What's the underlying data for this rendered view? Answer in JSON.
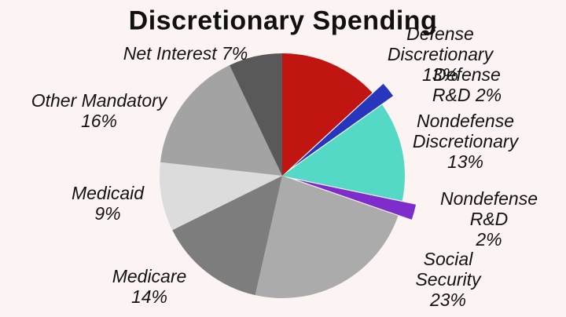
{
  "chart_data": {
    "type": "pie",
    "title": "Discretionary Spending",
    "background_color": "#fbf4f2",
    "label_color": "#131313",
    "legend": "none (direct slice labels)",
    "start_angle_deg": -90,
    "direction": "clockwise",
    "slices": [
      {
        "name": "defense-discretionary",
        "category": "Defense Discretionary",
        "value": 13,
        "percent_label": "13%",
        "color": "#c01510",
        "exploded": false,
        "label": "Defense Discretionary 13%"
      },
      {
        "name": "defense-rd",
        "category": "Defense R&D",
        "value": 2,
        "percent_label": "2%",
        "color": "#2737bd",
        "exploded": true,
        "label": "Defense R&D 2%"
      },
      {
        "name": "nondefense-discretionary",
        "category": "Nondefense Discretionary",
        "value": 13,
        "percent_label": "13%",
        "color": "#53d9c6",
        "exploded": false,
        "label": "Nondefense\nDiscretionary\n13%"
      },
      {
        "name": "nondefense-rd",
        "category": "Nondefense R&D",
        "value": 2,
        "percent_label": "2%",
        "color": "#7e2ccb",
        "exploded": true,
        "label": "Nondefense R&D\n2%"
      },
      {
        "name": "social-security",
        "category": "Social Security",
        "value": 23,
        "percent_label": "23%",
        "color": "#ababab",
        "exploded": false,
        "label": "Social Security\n23%"
      },
      {
        "name": "medicare",
        "category": "Medicare",
        "value": 14,
        "percent_label": "14%",
        "color": "#7d7d7d",
        "exploded": false,
        "label": "Medicare\n14%"
      },
      {
        "name": "medicaid",
        "category": "Medicaid",
        "value": 9,
        "percent_label": "9%",
        "color": "#dcdcdc",
        "exploded": false,
        "label": "Medicaid\n9%"
      },
      {
        "name": "other-mandatory",
        "category": "Other Mandatory",
        "value": 16,
        "percent_label": "16%",
        "color": "#a3a3a3",
        "exploded": false,
        "label": "Other Mandatory\n16%"
      },
      {
        "name": "net-interest",
        "category": "Net Interest",
        "value": 7,
        "percent_label": "7%",
        "color": "#595959",
        "exploded": false,
        "label": "Net Interest 7%"
      }
    ]
  }
}
